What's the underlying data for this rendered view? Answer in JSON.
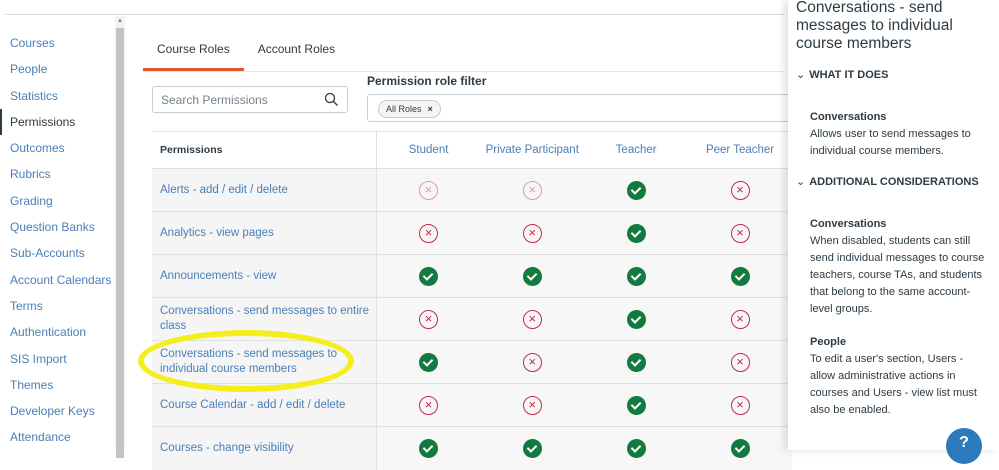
{
  "sidebar": {
    "items": [
      "Courses",
      "People",
      "Statistics",
      "Permissions",
      "Outcomes",
      "Rubrics",
      "Grading",
      "Question Banks",
      "Sub-Accounts",
      "Account Calendars",
      "Terms",
      "Authentication",
      "SIS Import",
      "Themes",
      "Developer Keys",
      "Attendance"
    ],
    "active": "Permissions"
  },
  "tabs": [
    "Course Roles",
    "Account Roles"
  ],
  "search": {
    "placeholder": "Search Permissions"
  },
  "filter": {
    "label": "Permission role filter",
    "chip": "All Roles",
    "chip_remove": "×"
  },
  "table": {
    "header": "Permissions",
    "roles": [
      "Student",
      "Private Participant",
      "Teacher",
      "Peer Teacher"
    ],
    "rows": [
      {
        "name": "Alerts - add / edit / delete",
        "states": [
          "disabled-faded",
          "disabled-faded",
          "enabled",
          "disabled"
        ]
      },
      {
        "name": "Analytics - view pages",
        "states": [
          "disabled",
          "disabled",
          "enabled",
          "disabled"
        ]
      },
      {
        "name": "Announcements - view",
        "states": [
          "enabled",
          "enabled",
          "enabled",
          "enabled"
        ]
      },
      {
        "name": "Conversations - send messages to entire class",
        "states": [
          "disabled",
          "disabled",
          "enabled",
          "disabled"
        ]
      },
      {
        "name": "Conversations - send messages to individual course members",
        "states": [
          "enabled",
          "disabled",
          "enabled",
          "disabled"
        ]
      },
      {
        "name": "Course Calendar - add / edit / delete",
        "states": [
          "disabled",
          "disabled",
          "enabled",
          "disabled"
        ]
      },
      {
        "name": "Courses - change visibility",
        "states": [
          "enabled",
          "enabled",
          "enabled",
          "enabled"
        ]
      }
    ]
  },
  "panel": {
    "title": "Conversations - send messages to individual course members",
    "what_it_does": "WHAT IT DOES",
    "what_title": "Conversations",
    "what_text": "Allows user to send messages to individual course members.",
    "additional": "ADDITIONAL CONSIDERATIONS",
    "add1_title": "Conversations",
    "add1_text": "When disabled, students can still send individual messages to course teachers, course TAs, and students that belong to the same account-level groups.",
    "add2_title": "People",
    "add2_text": "To edit a user's section, Users - allow administrative actions in courses and Users - view list must also be enabled."
  },
  "help": "?",
  "colors": {
    "accent": "#e0592a",
    "enabled": "#127a3f",
    "disabled": "#c2294d",
    "link": "#4a7fb5",
    "highlight": "#f4ee1c"
  }
}
